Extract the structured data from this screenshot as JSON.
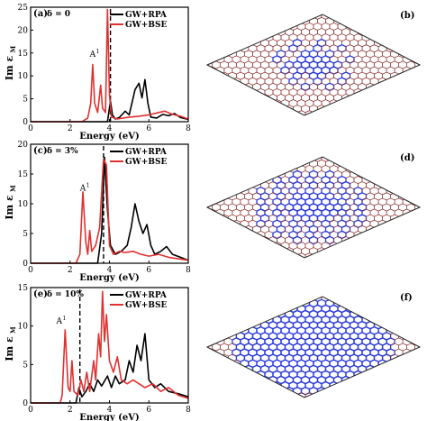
{
  "chart_data": [
    {
      "type": "line",
      "panel_label": "(a)",
      "delta_label": "δ = 0",
      "xlabel": "Energy (eV)",
      "ylabel": "Im ε",
      "ylabel_sub": "M",
      "xlim": [
        0,
        8
      ],
      "ylim": [
        0,
        25
      ],
      "xticks": [
        0,
        2,
        4,
        6,
        8
      ],
      "yticks": [
        0,
        5,
        10,
        15,
        20,
        25
      ],
      "dashed_line_x": 4.05,
      "annotation": {
        "text": "A",
        "sup": "1",
        "x": 3.0,
        "y": 14.2
      },
      "legend": {
        "position": "top-right"
      },
      "series": [
        {
          "name": "GW+RPA",
          "color": "#000000",
          "points": [
            [
              0,
              0
            ],
            [
              3.9,
              0
            ],
            [
              4.05,
              4.5
            ],
            [
              4.15,
              1.5
            ],
            [
              4.3,
              0.6
            ],
            [
              4.5,
              0.9
            ],
            [
              4.8,
              2.3
            ],
            [
              5.0,
              1.5
            ],
            [
              5.3,
              7.0
            ],
            [
              5.5,
              8.4
            ],
            [
              5.65,
              5.2
            ],
            [
              5.8,
              9.2
            ],
            [
              5.95,
              4.0
            ],
            [
              6.1,
              1.0
            ],
            [
              6.4,
              0.8
            ],
            [
              6.7,
              1.6
            ],
            [
              7.0,
              1.3
            ],
            [
              7.3,
              1.8
            ],
            [
              7.6,
              0.9
            ],
            [
              8,
              0.5
            ]
          ]
        },
        {
          "name": "GW+BSE",
          "color": "#e03131",
          "points": [
            [
              0,
              0
            ],
            [
              2.6,
              0
            ],
            [
              2.9,
              0.8
            ],
            [
              3.05,
              4.0
            ],
            [
              3.15,
              12.5
            ],
            [
              3.25,
              4.0
            ],
            [
              3.4,
              2.0
            ],
            [
              3.55,
              8.0
            ],
            [
              3.65,
              3.0
            ],
            [
              3.8,
              2.0
            ],
            [
              3.9,
              24.5
            ],
            [
              4.0,
              6.0
            ],
            [
              4.1,
              1.0
            ],
            [
              4.4,
              0.6
            ],
            [
              5.0,
              1.0
            ],
            [
              5.5,
              1.2
            ],
            [
              6.0,
              1.5
            ],
            [
              6.5,
              2.0
            ],
            [
              6.8,
              2.3
            ],
            [
              7.2,
              1.6
            ],
            [
              7.6,
              1.2
            ],
            [
              8,
              0.6
            ]
          ]
        }
      ]
    },
    {
      "type": "line",
      "panel_label": "(c)",
      "delta_label": "δ = 3%",
      "xlabel": "Energy (eV)",
      "ylabel": "Im ε",
      "ylabel_sub": "M",
      "xlim": [
        0,
        8
      ],
      "ylim": [
        0,
        20
      ],
      "xticks": [
        0,
        2,
        4,
        6,
        8
      ],
      "yticks": [
        0,
        5,
        10,
        15,
        20
      ],
      "dashed_line_x": 3.7,
      "annotation": {
        "text": "A",
        "sup": "1",
        "x": 2.5,
        "y": 12.2
      },
      "legend": {
        "position": "top-right"
      },
      "series": [
        {
          "name": "GW+RPA",
          "color": "#000000",
          "points": [
            [
              0,
              0
            ],
            [
              3.4,
              0
            ],
            [
              3.6,
              5.0
            ],
            [
              3.75,
              17.8
            ],
            [
              3.9,
              9.0
            ],
            [
              4.05,
              3.0
            ],
            [
              4.3,
              1.5
            ],
            [
              4.6,
              2.0
            ],
            [
              4.9,
              3.0
            ],
            [
              5.1,
              6.0
            ],
            [
              5.3,
              10.0
            ],
            [
              5.5,
              7.0
            ],
            [
              5.7,
              5.0
            ],
            [
              5.9,
              6.5
            ],
            [
              6.1,
              3.0
            ],
            [
              6.3,
              1.5
            ],
            [
              6.6,
              2.0
            ],
            [
              6.9,
              2.8
            ],
            [
              7.2,
              1.5
            ],
            [
              7.6,
              1.0
            ],
            [
              8,
              0.5
            ]
          ]
        },
        {
          "name": "GW+BSE",
          "color": "#e03131",
          "points": [
            [
              0,
              0
            ],
            [
              2.3,
              0
            ],
            [
              2.5,
              1.5
            ],
            [
              2.65,
              12.0
            ],
            [
              2.8,
              3.5
            ],
            [
              2.9,
              1.5
            ],
            [
              3.0,
              5.5
            ],
            [
              3.1,
              2.0
            ],
            [
              3.3,
              3.0
            ],
            [
              3.5,
              6.0
            ],
            [
              3.7,
              17.5
            ],
            [
              3.85,
              16.5
            ],
            [
              4.0,
              3.0
            ],
            [
              4.2,
              1.5
            ],
            [
              4.5,
              2.0
            ],
            [
              4.8,
              1.8
            ],
            [
              5.2,
              2.0
            ],
            [
              5.6,
              1.5
            ],
            [
              6.0,
              1.2
            ],
            [
              6.5,
              1.5
            ],
            [
              7.0,
              1.0
            ],
            [
              8,
              0.5
            ]
          ]
        }
      ]
    },
    {
      "type": "line",
      "panel_label": "(e)",
      "delta_label": "δ = 10%",
      "xlabel": "Energy (eV)",
      "ylabel": "Im ε",
      "ylabel_sub": "M",
      "xlim": [
        0,
        8
      ],
      "ylim": [
        0,
        15
      ],
      "xticks": [
        0,
        2,
        4,
        6,
        8
      ],
      "yticks": [
        0,
        5,
        10,
        15
      ],
      "dashed_line_x": 2.5,
      "annotation": {
        "text": "A",
        "sup": "1",
        "x": 1.3,
        "y": 10.3
      },
      "legend": {
        "position": "top-right"
      },
      "series": [
        {
          "name": "GW+RPA",
          "color": "#000000",
          "points": [
            [
              0,
              0
            ],
            [
              2.3,
              0
            ],
            [
              2.45,
              2.0
            ],
            [
              2.6,
              0.8
            ],
            [
              2.8,
              1.5
            ],
            [
              3.0,
              2.5
            ],
            [
              3.2,
              1.5
            ],
            [
              3.4,
              3.0
            ],
            [
              3.6,
              2.2
            ],
            [
              3.9,
              3.5
            ],
            [
              4.1,
              2.0
            ],
            [
              4.3,
              3.5
            ],
            [
              4.5,
              2.5
            ],
            [
              4.8,
              3.0
            ],
            [
              5.0,
              5.5
            ],
            [
              5.2,
              4.0
            ],
            [
              5.4,
              7.5
            ],
            [
              5.6,
              5.5
            ],
            [
              5.8,
              9.0
            ],
            [
              6.0,
              3.0
            ],
            [
              6.3,
              2.0
            ],
            [
              6.6,
              2.5
            ],
            [
              7.0,
              1.5
            ],
            [
              7.5,
              1.2
            ],
            [
              8,
              0.8
            ]
          ]
        },
        {
          "name": "GW+BSE",
          "color": "#e03131",
          "points": [
            [
              0,
              0
            ],
            [
              1.5,
              0
            ],
            [
              1.6,
              1.0
            ],
            [
              1.75,
              9.5
            ],
            [
              1.9,
              2.0
            ],
            [
              2.0,
              1.5
            ],
            [
              2.1,
              5.5
            ],
            [
              2.2,
              1.5
            ],
            [
              2.4,
              1.0
            ],
            [
              2.55,
              3.0
            ],
            [
              2.7,
              1.5
            ],
            [
              2.85,
              4.0
            ],
            [
              3.0,
              1.5
            ],
            [
              3.2,
              5.5
            ],
            [
              3.3,
              3.0
            ],
            [
              3.45,
              9.0
            ],
            [
              3.55,
              6.0
            ],
            [
              3.65,
              14.5
            ],
            [
              3.75,
              8.0
            ],
            [
              3.85,
              11.5
            ],
            [
              4.0,
              5.5
            ],
            [
              4.2,
              4.0
            ],
            [
              4.4,
              6.0
            ],
            [
              4.6,
              3.0
            ],
            [
              4.9,
              2.5
            ],
            [
              5.2,
              3.0
            ],
            [
              5.5,
              2.5
            ],
            [
              5.8,
              2.0
            ],
            [
              6.2,
              2.5
            ],
            [
              6.6,
              1.5
            ],
            [
              7.0,
              2.0
            ],
            [
              7.5,
              1.0
            ],
            [
              8,
              0.6
            ]
          ]
        }
      ]
    }
  ],
  "diagram_panels": [
    {
      "label": "(b)",
      "density": 1
    },
    {
      "label": "(d)",
      "density": 2
    },
    {
      "label": "(f)",
      "density": 3
    }
  ],
  "colors": {
    "rpa": "#000000",
    "bse": "#e03131",
    "lattice": "#8a3030",
    "dopant": "#2b3bd6"
  }
}
